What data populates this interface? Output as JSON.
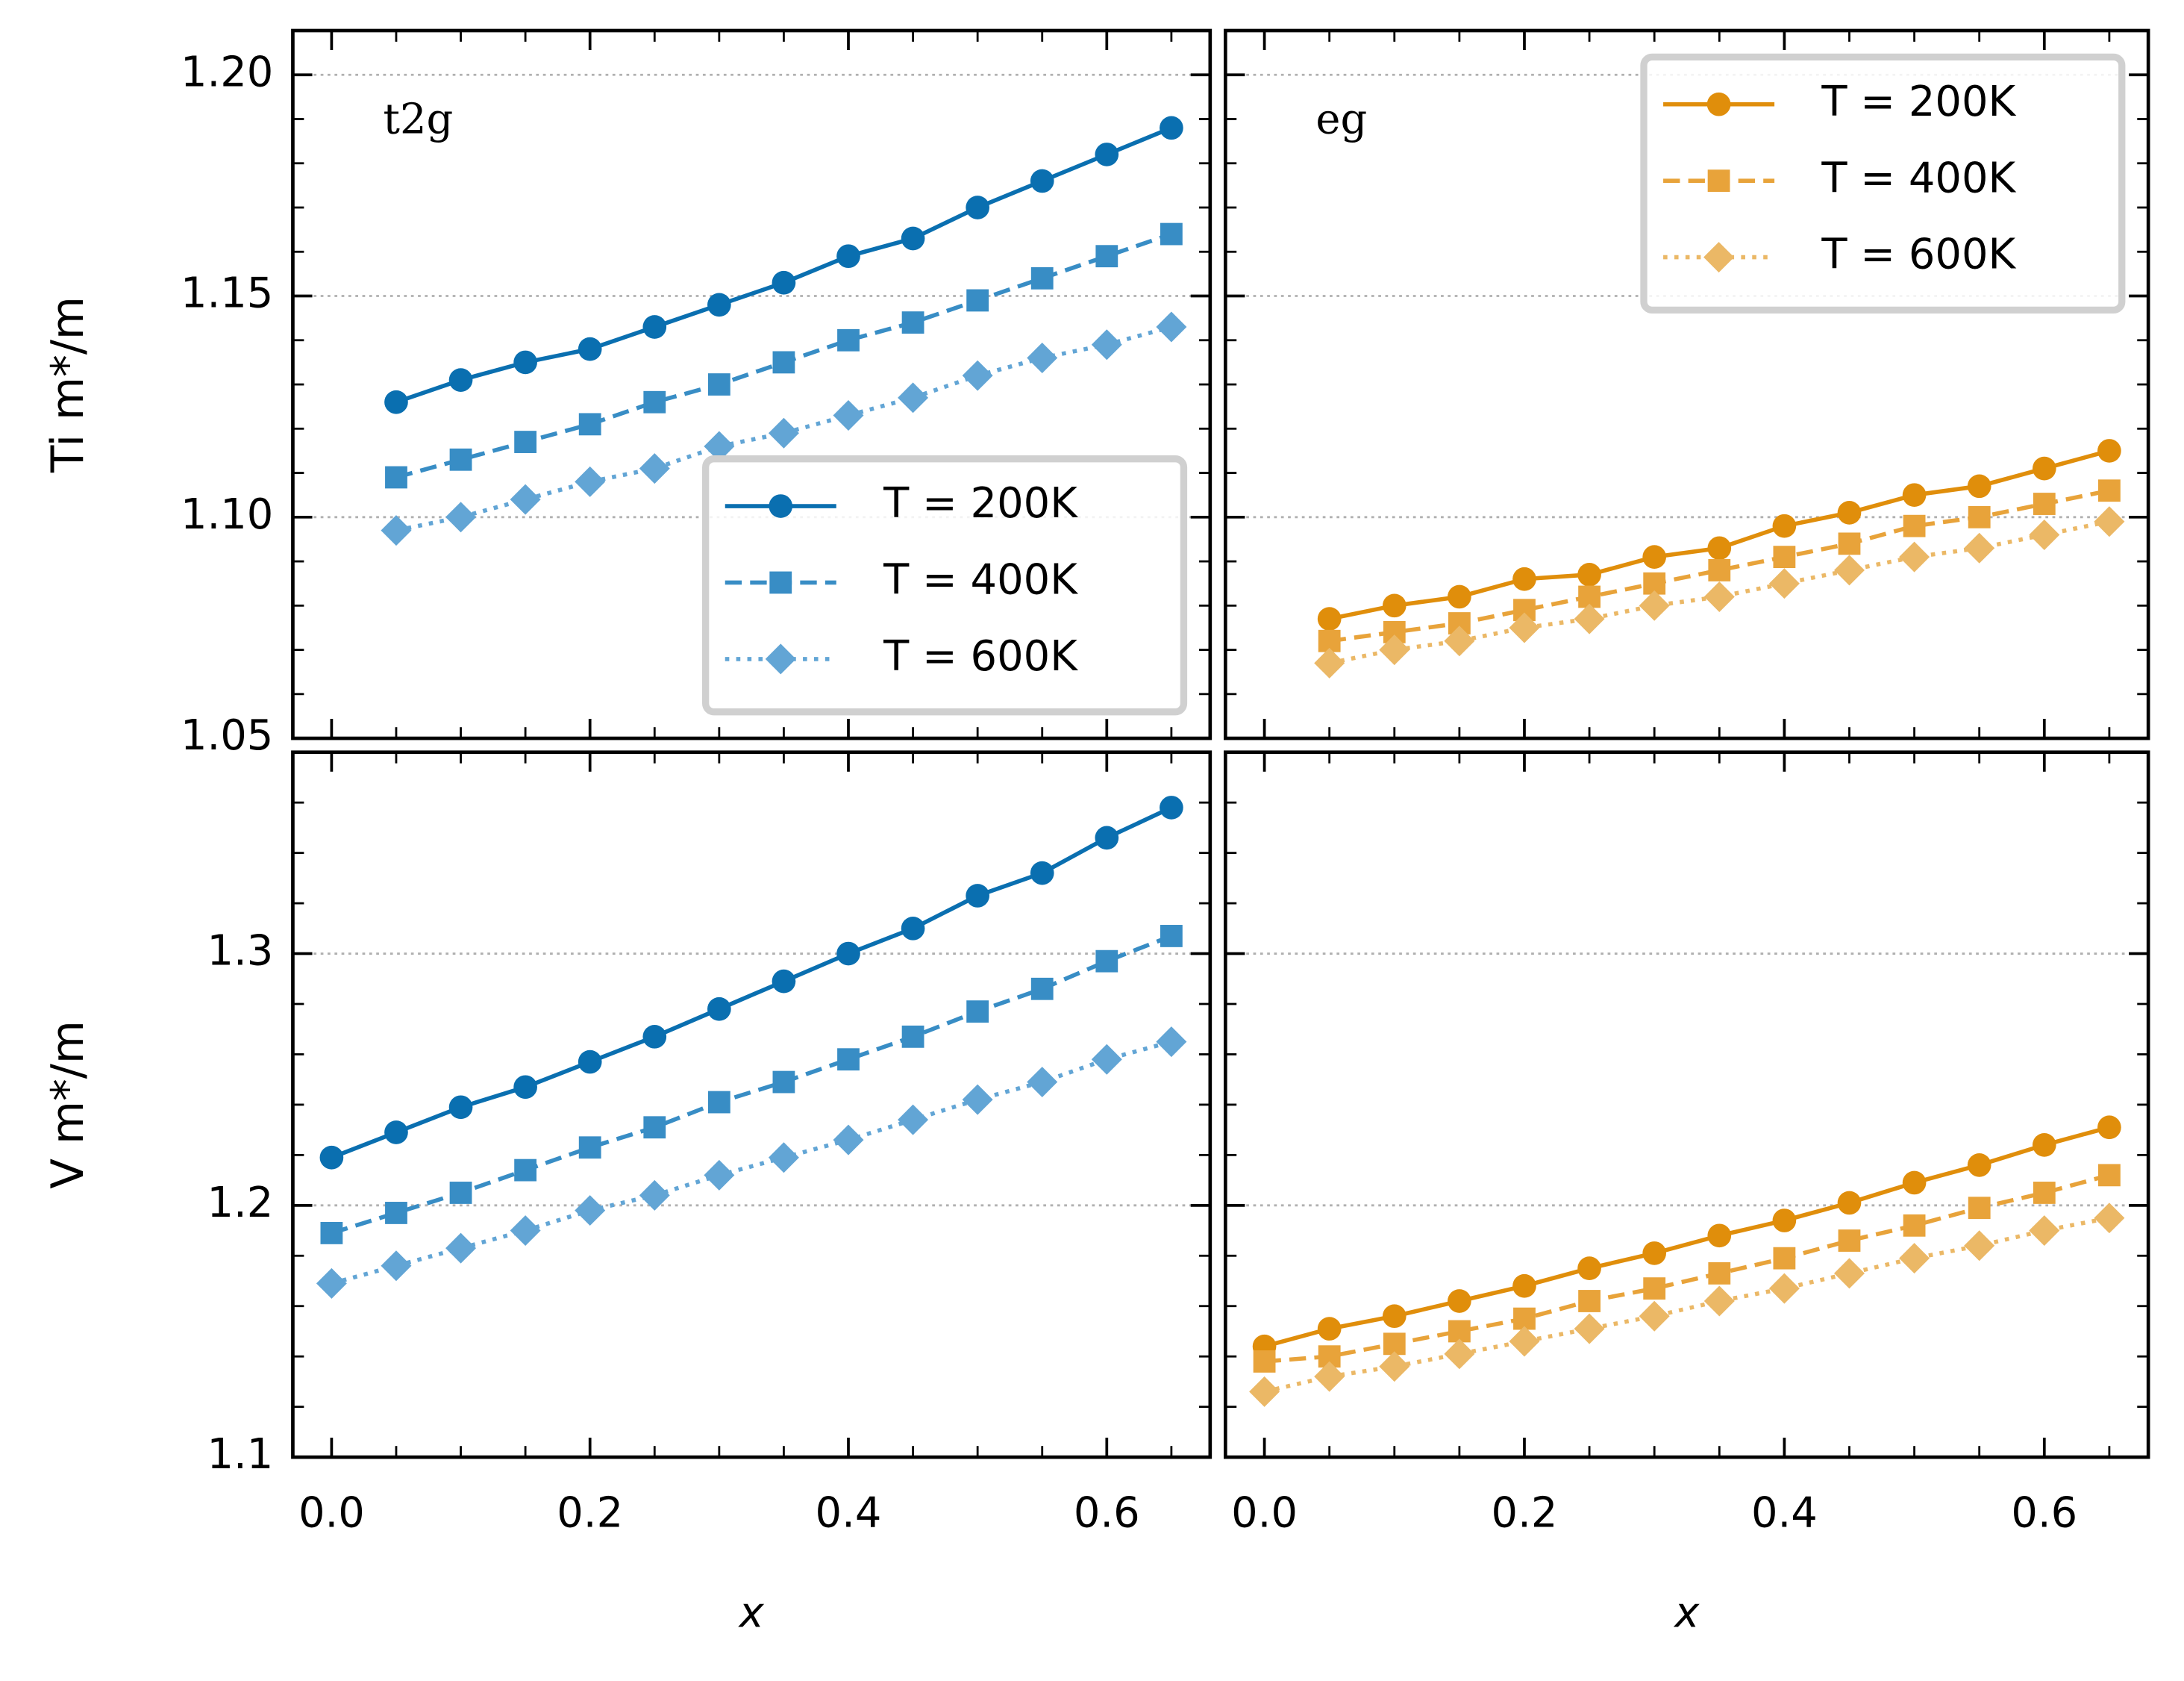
{
  "chart_data": [
    {
      "type": "line",
      "annotation": "t2g",
      "ylabel": "Ti m*/m",
      "legend": "lower right",
      "x": [
        0.0,
        0.05,
        0.1,
        0.15,
        0.2,
        0.25,
        0.3,
        0.35,
        0.4,
        0.45,
        0.5,
        0.55,
        0.6,
        0.65
      ],
      "xlim": [
        -0.03,
        0.68
      ],
      "xticks": [
        {
          "value": 0,
          "label": "0.0"
        },
        0.2,
        0.4,
        0.6
      ],
      "ylim": [
        1.05,
        1.21
      ],
      "yticks": [
        1.05,
        {
          "value": 1.1,
          "label": "1.10"
        },
        1.15,
        {
          "value": 1.2,
          "label": "1.20"
        }
      ],
      "grid": true,
      "series": [
        {
          "name": "T = 200K",
          "color": "#0a6fb0",
          "marker": "circle",
          "linestyle": "solid",
          "values": [
            null,
            1.126,
            1.131,
            1.135,
            1.138,
            1.143,
            1.148,
            1.153,
            1.159,
            1.163,
            1.17,
            1.176,
            1.182,
            1.188
          ]
        },
        {
          "name": "T = 400K",
          "color": "#388dc5",
          "marker": "square",
          "linestyle": "dashed",
          "values": [
            null,
            1.109,
            1.113,
            1.117,
            1.121,
            1.126,
            1.13,
            1.135,
            1.14,
            1.144,
            1.149,
            1.154,
            1.159,
            1.164
          ]
        },
        {
          "name": "T = 600K",
          "color": "#62a5d5",
          "marker": "diamond",
          "linestyle": "dotted",
          "values": [
            null,
            1.097,
            1.1,
            1.104,
            1.108,
            1.111,
            1.116,
            1.119,
            1.123,
            1.127,
            1.132,
            1.136,
            1.139,
            1.143
          ]
        }
      ]
    },
    {
      "type": "line",
      "annotation": "eg",
      "legend": "upper right",
      "x": [
        0.0,
        0.05,
        0.1,
        0.15,
        0.2,
        0.25,
        0.3,
        0.35,
        0.4,
        0.45,
        0.5,
        0.55,
        0.6,
        0.65
      ],
      "xlim": [
        -0.03,
        0.68
      ],
      "xticks": [
        {
          "value": 0,
          "label": "0.0"
        },
        0.2,
        0.4,
        0.6
      ],
      "ylim": [
        1.05,
        1.21
      ],
      "yticks": [
        1.05,
        {
          "value": 1.1,
          "label": "1.10"
        },
        1.15,
        {
          "value": 1.2,
          "label": "1.20"
        }
      ],
      "grid": true,
      "series": [
        {
          "name": "T = 200K",
          "color": "#e08e0b",
          "marker": "circle",
          "linestyle": "solid",
          "values": [
            null,
            1.077,
            1.08,
            1.082,
            1.086,
            1.087,
            1.091,
            1.093,
            1.098,
            1.101,
            1.105,
            1.107,
            1.111,
            1.115
          ]
        },
        {
          "name": "T = 400K",
          "color": "#e8a33a",
          "marker": "square",
          "linestyle": "dashed",
          "values": [
            null,
            1.072,
            1.074,
            1.076,
            1.079,
            1.082,
            1.085,
            1.088,
            1.091,
            1.094,
            1.098,
            1.1,
            1.103,
            1.106
          ]
        },
        {
          "name": "T = 600K",
          "color": "#ebb866",
          "marker": "diamond",
          "linestyle": "dotted",
          "values": [
            null,
            1.067,
            1.07,
            1.072,
            1.075,
            1.077,
            1.08,
            1.082,
            1.085,
            1.088,
            1.091,
            1.093,
            1.096,
            1.099
          ]
        }
      ]
    },
    {
      "type": "line",
      "ylabel": "V m*/m",
      "xlabel": "x",
      "x": [
        0.0,
        0.05,
        0.1,
        0.15,
        0.2,
        0.25,
        0.3,
        0.35,
        0.4,
        0.45,
        0.5,
        0.55,
        0.6,
        0.65
      ],
      "xlim": [
        -0.03,
        0.68
      ],
      "xticks": [
        {
          "value": 0,
          "label": "0.0"
        },
        0.2,
        0.4,
        0.6
      ],
      "ylim": [
        1.1,
        1.38
      ],
      "yticks": [
        1.1,
        1.2,
        1.3
      ],
      "grid": true,
      "series": [
        {
          "name": "T = 200K",
          "color": "#0a6fb0",
          "marker": "circle",
          "linestyle": "solid",
          "values": [
            1.219,
            1.229,
            1.239,
            1.247,
            1.257,
            1.267,
            1.278,
            1.289,
            1.3,
            1.31,
            1.323,
            1.332,
            1.346,
            1.358
          ]
        },
        {
          "name": "T = 400K",
          "color": "#388dc5",
          "marker": "square",
          "linestyle": "dashed",
          "values": [
            1.189,
            1.197,
            1.205,
            1.214,
            1.223,
            1.231,
            1.241,
            1.249,
            1.258,
            1.267,
            1.277,
            1.286,
            1.297,
            1.307
          ]
        },
        {
          "name": "T = 600K",
          "color": "#62a5d5",
          "marker": "diamond",
          "linestyle": "dotted",
          "values": [
            1.169,
            1.176,
            1.183,
            1.19,
            1.198,
            1.204,
            1.212,
            1.219,
            1.226,
            1.234,
            1.242,
            1.249,
            1.258,
            1.265
          ]
        }
      ]
    },
    {
      "type": "line",
      "xlabel": "x",
      "x": [
        0.0,
        0.05,
        0.1,
        0.15,
        0.2,
        0.25,
        0.3,
        0.35,
        0.4,
        0.45,
        0.5,
        0.55,
        0.6,
        0.65
      ],
      "xlim": [
        -0.03,
        0.68
      ],
      "xticks": [
        {
          "value": 0,
          "label": "0.0"
        },
        0.2,
        0.4,
        0.6
      ],
      "ylim": [
        1.1,
        1.38
      ],
      "yticks": [
        1.1,
        1.2,
        1.3
      ],
      "grid": true,
      "series": [
        {
          "name": "T = 200K",
          "color": "#e08e0b",
          "marker": "circle",
          "linestyle": "solid",
          "values": [
            1.144,
            1.151,
            1.156,
            1.162,
            1.168,
            1.175,
            1.181,
            1.188,
            1.194,
            1.201,
            1.209,
            1.216,
            1.224,
            1.231
          ]
        },
        {
          "name": "T = 400K",
          "color": "#e8a33a",
          "marker": "square",
          "linestyle": "dashed",
          "values": [
            1.138,
            1.14,
            1.145,
            1.15,
            1.155,
            1.162,
            1.167,
            1.173,
            1.179,
            1.186,
            1.192,
            1.199,
            1.205,
            1.212
          ]
        },
        {
          "name": "T = 600K",
          "color": "#ebb866",
          "marker": "diamond",
          "linestyle": "dotted",
          "values": [
            1.126,
            1.132,
            1.136,
            1.141,
            1.146,
            1.151,
            1.156,
            1.162,
            1.167,
            1.173,
            1.179,
            1.184,
            1.19,
            1.195
          ]
        }
      ]
    }
  ]
}
